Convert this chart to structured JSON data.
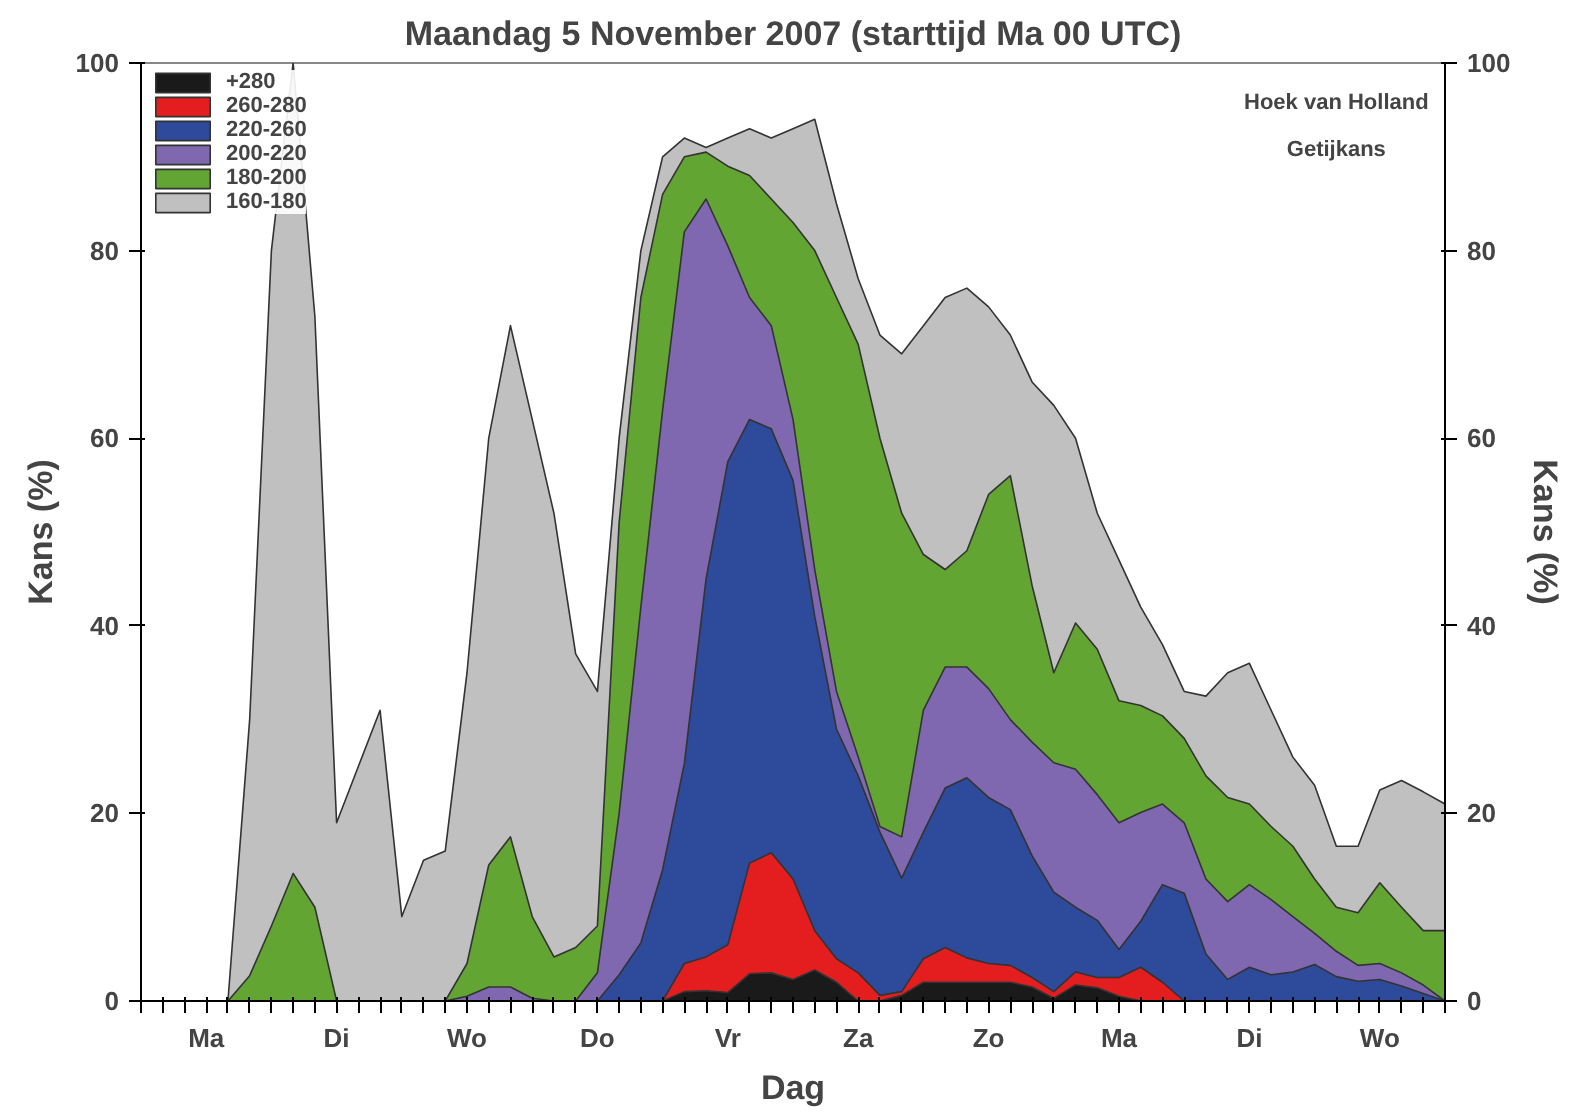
{
  "chart_data": {
    "type": "area",
    "title": "Maandag 5 November 2007 (starttijd Ma 00 UTC)",
    "xlabel": "Dag",
    "ylabel": "Kans (%)",
    "y2label": "Kans (%)",
    "annotations": [
      "Hoek van Holland",
      "Getijkans"
    ],
    "categories": [
      null,
      null,
      null,
      "Ma",
      null,
      null,
      null,
      null,
      null,
      "Di",
      null,
      null,
      null,
      null,
      null,
      "Wo",
      null,
      null,
      null,
      null,
      null,
      "Do",
      null,
      null,
      null,
      null,
      null,
      "Vr",
      null,
      null,
      null,
      null,
      null,
      "Za",
      null,
      null,
      null,
      null,
      null,
      "Zo",
      null,
      null,
      null,
      null,
      null,
      "Ma",
      null,
      null,
      null,
      null,
      null,
      "Di",
      null,
      null,
      null,
      null,
      null,
      "Wo",
      null,
      null,
      null
    ],
    "ylim": [
      0,
      100
    ],
    "yticks": [
      0,
      20,
      40,
      60,
      80,
      100
    ],
    "y2lim": [
      0,
      100
    ],
    "y2ticks": [
      0,
      20,
      40,
      60,
      80,
      100
    ],
    "grid": false,
    "legend": "top left",
    "marker": "none",
    "series": [
      {
        "name": "+280",
        "color": "#1a1a1a",
        "values": [
          0,
          0,
          0,
          0,
          0,
          0,
          0,
          0,
          0,
          0,
          0,
          0,
          0,
          0,
          0,
          0,
          0,
          0,
          0,
          0,
          0,
          0,
          0,
          0,
          0,
          1,
          1.1,
          0.9,
          2.9,
          3,
          2.3,
          3.3,
          2,
          0,
          0,
          0.6,
          2,
          2,
          2,
          2,
          2,
          1.5,
          0.3,
          1.7,
          1.4,
          0.5,
          0,
          0,
          0,
          0,
          0,
          0,
          0,
          0,
          0,
          0,
          0,
          0,
          0,
          0,
          0
        ]
      },
      {
        "name": "260-280",
        "color": "#e41e1e",
        "values": [
          0,
          0,
          0,
          0,
          0,
          0,
          0,
          0,
          0,
          0,
          0,
          0,
          0,
          0,
          0,
          0,
          0,
          0,
          0,
          0,
          0,
          0,
          0,
          0,
          0,
          4,
          4.7,
          6,
          14.7,
          15.8,
          13,
          7.5,
          4.5,
          3,
          0.6,
          1,
          4.5,
          5.7,
          4.6,
          4,
          3.8,
          2.5,
          1,
          3.1,
          2.5,
          2.5,
          3.6,
          2,
          0,
          0,
          0,
          0,
          0,
          0,
          0,
          0,
          0,
          0,
          0,
          0,
          0
        ]
      },
      {
        "name": "220-260",
        "color": "#2e4a9a",
        "values": [
          0,
          0,
          0,
          0,
          0,
          0,
          0,
          0,
          0,
          0,
          0,
          0,
          0,
          0,
          0,
          0,
          0,
          0,
          0,
          0,
          0,
          0,
          2.8,
          6.2,
          14,
          25.3,
          45,
          57.5,
          62,
          61,
          55.5,
          41,
          29,
          24,
          18,
          13.1,
          18,
          22.7,
          23.8,
          21.7,
          20.4,
          15.5,
          11.6,
          10,
          8.6,
          5.5,
          8.5,
          12.4,
          11.5,
          5,
          2.3,
          3.6,
          2.8,
          3.1,
          3.9,
          2.6,
          2.1,
          2.3,
          1.6,
          0.8,
          0
        ]
      },
      {
        "name": "200-220",
        "color": "#8068b0",
        "values": [
          0,
          0,
          0,
          0,
          0,
          0,
          0,
          0,
          0,
          0,
          0,
          0,
          0,
          0,
          0,
          0.5,
          1.5,
          1.5,
          0.3,
          0,
          0,
          3,
          20,
          42,
          63,
          82,
          85.5,
          80.5,
          75,
          72,
          62,
          46,
          33,
          26,
          18.6,
          17.5,
          31,
          35.6,
          35.6,
          33.3,
          30,
          27.6,
          25.4,
          24.7,
          22,
          19,
          20.1,
          21,
          19,
          13,
          10.6,
          12.4,
          10.8,
          9,
          7.2,
          5.3,
          3.8,
          4,
          3,
          1.7,
          0
        ]
      },
      {
        "name": "180-200",
        "color": "#63a532",
        "values": [
          0,
          0,
          0,
          0,
          0,
          2.7,
          8,
          13.6,
          10,
          0,
          0,
          0,
          0,
          0,
          0,
          4,
          14.5,
          17.5,
          9,
          4.7,
          5.7,
          8,
          51,
          75,
          86,
          90,
          90.5,
          89,
          88,
          85.5,
          83,
          80,
          75,
          70,
          60,
          52,
          47.6,
          46,
          48,
          54,
          56,
          44.3,
          35,
          40.3,
          37.5,
          32,
          31.5,
          30.4,
          28,
          24,
          21.7,
          21,
          18.6,
          16.5,
          13,
          10,
          9.4,
          12.6,
          10,
          7.5,
          7.5
        ]
      },
      {
        "name": "160-180",
        "color": "#c0c0c0",
        "values": [
          0,
          0,
          0,
          0,
          0,
          30,
          80,
          100,
          73,
          19,
          25,
          31,
          9,
          15,
          16,
          35,
          60,
          72,
          62,
          52,
          37,
          33,
          60,
          80,
          90,
          92,
          91,
          92,
          93,
          92,
          93,
          94,
          85,
          77,
          71,
          69,
          72,
          75,
          76,
          74,
          71,
          66,
          63.5,
          60,
          52,
          47,
          42,
          38,
          33,
          32.5,
          35,
          36,
          31,
          26,
          23,
          16.5,
          16.5,
          22.5,
          23.5,
          22.3,
          21
        ]
      }
    ]
  }
}
